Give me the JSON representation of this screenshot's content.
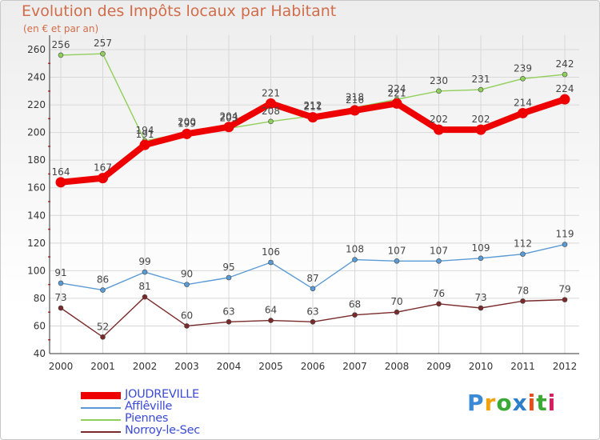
{
  "logo": {
    "text": "Proxiti",
    "colors": [
      "#3b8ad6",
      "#f0a30a",
      "#3aa935",
      "#2e7fc9",
      "#e84e1b",
      "#3aa935",
      "#d61d5f"
    ]
  },
  "chart_data": {
    "type": "line",
    "title": "Evolution des Impôts locaux par Habitant",
    "subtitle": "(en € et par an)",
    "x": [
      "2000",
      "2001",
      "2002",
      "2003",
      "2004",
      "2005",
      "2006",
      "2007",
      "2008",
      "2009",
      "2010",
      "2011",
      "2012"
    ],
    "ylim": [
      40,
      260
    ],
    "yticks": [
      40,
      60,
      80,
      100,
      120,
      140,
      160,
      180,
      200,
      220,
      240,
      260
    ],
    "grid": true,
    "legend": "bottom-left",
    "series": [
      {
        "name": "JOUDREVILLE",
        "color": "#ee0000",
        "values": [
          164,
          167,
          191,
          199,
          204,
          221,
          211,
          216,
          221,
          202,
          202,
          214,
          224
        ]
      },
      {
        "name": "Afflêville",
        "color": "#5b9bd5",
        "values": [
          91,
          86,
          99,
          90,
          95,
          106,
          87,
          108,
          107,
          107,
          109,
          112,
          119
        ]
      },
      {
        "name": "Piennes",
        "color": "#8fd05a",
        "values": [
          256,
          257,
          194,
          200,
          203,
          208,
          212,
          218,
          224,
          230,
          231,
          239,
          242
        ]
      },
      {
        "name": "Norroy-le-Sec",
        "color": "#7a2a2a",
        "values": [
          73,
          52,
          81,
          60,
          63,
          64,
          63,
          68,
          70,
          76,
          73,
          78,
          79
        ]
      }
    ]
  }
}
